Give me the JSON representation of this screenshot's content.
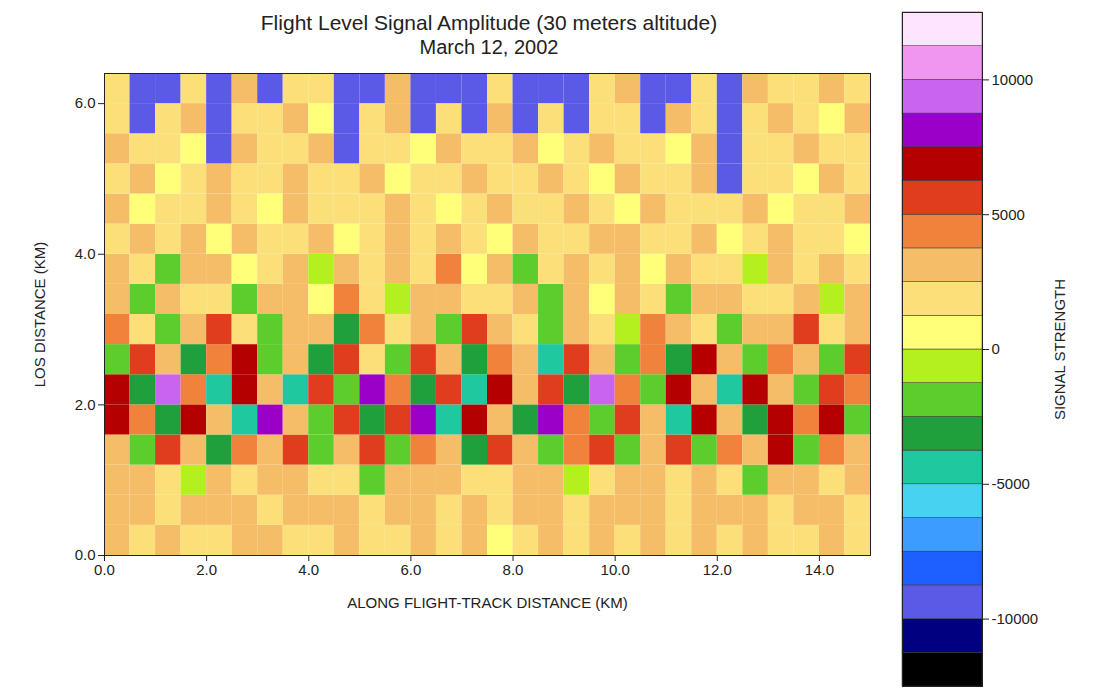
{
  "chart_data": {
    "type": "heatmap",
    "title": "Flight Level Signal Amplitude (30 meters altitude)",
    "subtitle": "March 12, 2002",
    "x_label": "ALONG FLIGHT-TRACK DISTANCE (KM)",
    "y_label": "LOS DISTANCE (KM)",
    "xlim": [
      0,
      15
    ],
    "xticks": [
      {
        "value": 0,
        "label": "0.0"
      },
      {
        "value": 2,
        "label": "2.0"
      },
      {
        "value": 4,
        "label": "4.0"
      },
      {
        "value": 6,
        "label": "6.0"
      },
      {
        "value": 8,
        "label": "8.0"
      },
      {
        "value": 10,
        "label": "10.0"
      },
      {
        "value": 12,
        "label": "12.0"
      },
      {
        "value": 14,
        "label": "14.0"
      }
    ],
    "ylim": [
      0,
      6.4
    ],
    "yticks": [
      {
        "value": 0,
        "label": "0.0"
      },
      {
        "value": 2,
        "label": "2.0"
      },
      {
        "value": 4,
        "label": "4.0"
      },
      {
        "value": 6,
        "label": "6.0"
      }
    ],
    "x": [
      0.25,
      0.75,
      1.25,
      1.75,
      2.25,
      2.75,
      3.25,
      3.75,
      4.25,
      4.75,
      5.25,
      5.75,
      6.25,
      6.75,
      7.25,
      7.75,
      8.25,
      8.75,
      9.25,
      9.75,
      10.25,
      10.75,
      11.25,
      11.75,
      12.25,
      12.75,
      13.25,
      13.75,
      14.25,
      14.75
    ],
    "y": [
      0.2,
      0.6,
      1.0,
      1.4,
      1.8,
      2.2,
      2.6,
      3.0,
      3.4,
      3.8,
      4.2,
      4.6,
      5.0,
      5.4,
      5.8,
      6.2
    ],
    "values": [
      [
        2500,
        1500,
        3000,
        2000,
        1500,
        2500,
        3000,
        1500,
        2000,
        2500,
        1500,
        2000,
        3000,
        1500,
        2500,
        1000,
        2000,
        2500,
        1500,
        3000,
        2000,
        2500,
        1500,
        3500,
        2000,
        2500,
        1500,
        2000,
        2500,
        1500
      ],
      [
        3000,
        2500,
        2000,
        3000,
        2500,
        3000,
        2000,
        2500,
        3000,
        2500,
        2000,
        3000,
        2500,
        2000,
        3000,
        1500,
        2500,
        3000,
        2000,
        2500,
        3000,
        2500,
        2000,
        3000,
        2500,
        3000,
        2000,
        2500,
        3000,
        2000
      ],
      [
        2500,
        3000,
        1500,
        -1000,
        3500,
        2000,
        2500,
        3000,
        1500,
        2000,
        -1500,
        3000,
        2500,
        3500,
        2000,
        1500,
        2500,
        3000,
        -1000,
        2000,
        3500,
        2500,
        1500,
        3000,
        2000,
        -1500,
        2500,
        3000,
        2000,
        2500
      ],
      [
        3500,
        -2000,
        5500,
        3000,
        -3000,
        4500,
        2500,
        6000,
        -2500,
        3500,
        5000,
        -2000,
        4000,
        2500,
        -3500,
        5500,
        3000,
        -2000,
        4500,
        6000,
        -1500,
        3500,
        5000,
        -2500,
        4000,
        3000,
        6500,
        -2000,
        4500,
        3500
      ],
      [
        7000,
        4500,
        -3000,
        6500,
        2500,
        -4500,
        8500,
        3500,
        -2000,
        6000,
        -3500,
        5000,
        7500,
        -4000,
        6500,
        3000,
        -3000,
        8000,
        4500,
        -2500,
        6000,
        3500,
        -4500,
        7000,
        2500,
        -3000,
        6500,
        4000,
        7000,
        -2000
      ],
      [
        6500,
        -3500,
        9000,
        4500,
        -4000,
        7000,
        3000,
        -5000,
        6000,
        -2500,
        8000,
        4000,
        -3500,
        5500,
        -4500,
        7000,
        2500,
        6000,
        -3000,
        9500,
        4500,
        -2500,
        6500,
        3500,
        -4000,
        7000,
        3000,
        -2000,
        5500,
        4000
      ],
      [
        -2500,
        5500,
        2500,
        -3000,
        4000,
        6500,
        -2000,
        3000,
        -3500,
        5000,
        2000,
        -2500,
        6000,
        3500,
        -3000,
        4500,
        2500,
        -4000,
        5500,
        3000,
        -2000,
        4500,
        -3000,
        6500,
        2500,
        -1500,
        4000,
        3000,
        -2500,
        5000
      ],
      [
        4000,
        2000,
        -2500,
        3000,
        5500,
        1500,
        -2000,
        3500,
        2500,
        -3000,
        4500,
        2000,
        3000,
        -1500,
        5000,
        2500,
        1500,
        -2500,
        3500,
        2000,
        -1000,
        4000,
        2500,
        1500,
        -2000,
        3000,
        2500,
        5500,
        2000,
        3500
      ],
      [
        2500,
        -2000,
        3500,
        1500,
        2000,
        -1500,
        3000,
        2500,
        1000,
        4500,
        2000,
        -1000,
        2500,
        3000,
        1500,
        2000,
        3500,
        -2000,
        2500,
        1000,
        3000,
        2000,
        -1500,
        2500,
        3500,
        1500,
        2000,
        2500,
        -1000,
        3000
      ],
      [
        3000,
        1500,
        -1500,
        2500,
        3500,
        1000,
        2000,
        2500,
        -1000,
        3000,
        1500,
        2500,
        2000,
        4000,
        1000,
        2500,
        -1500,
        2000,
        3000,
        1500,
        2500,
        1000,
        3500,
        2000,
        1500,
        -1000,
        2500,
        2000,
        3000,
        1500
      ],
      [
        2000,
        2500,
        1500,
        3000,
        1000,
        2500,
        2000,
        1500,
        2500,
        1000,
        2000,
        3000,
        1500,
        2500,
        2000,
        1000,
        2500,
        2000,
        1500,
        2500,
        3000,
        1500,
        2000,
        2500,
        1000,
        2000,
        2500,
        1500,
        2000,
        1000
      ],
      [
        2500,
        1000,
        2000,
        1500,
        2500,
        2000,
        1000,
        2500,
        1500,
        2000,
        1500,
        2500,
        2000,
        1000,
        1500,
        2500,
        2000,
        1500,
        2500,
        2000,
        1000,
        2500,
        1500,
        2000,
        1500,
        2500,
        1000,
        2000,
        1500,
        2500
      ],
      [
        1500,
        2500,
        1000,
        2000,
        2500,
        1500,
        2000,
        2500,
        1500,
        2000,
        2500,
        1000,
        2000,
        1500,
        2500,
        2000,
        1500,
        2500,
        2000,
        1000,
        2500,
        1500,
        2000,
        2500,
        -9000,
        1500,
        2000,
        1000,
        2500,
        2000
      ],
      [
        2500,
        1500,
        2000,
        1000,
        -9000,
        2500,
        1500,
        2000,
        2500,
        -9000,
        1500,
        2000,
        1000,
        2500,
        1500,
        2000,
        2500,
        1000,
        2000,
        2500,
        1500,
        2000,
        1000,
        2500,
        -9000,
        2000,
        1500,
        2500,
        2000,
        1500
      ],
      [
        1500,
        -9000,
        2000,
        2500,
        -9000,
        1500,
        2000,
        2500,
        1000,
        -9000,
        2000,
        2500,
        -9000,
        1500,
        -9000,
        2500,
        -9000,
        1500,
        -9000,
        2000,
        1500,
        -9000,
        2500,
        2000,
        -9000,
        1500,
        2500,
        2000,
        1000,
        2500
      ],
      [
        2000,
        -9000,
        -9000,
        1500,
        -9000,
        2500,
        -9000,
        1500,
        2000,
        -9000,
        -9000,
        2500,
        -9000,
        -9000,
        -9000,
        1500,
        -9000,
        -9000,
        -9000,
        2000,
        2500,
        -9000,
        -9000,
        1500,
        -9000,
        2500,
        2000,
        1500,
        2500,
        2000
      ]
    ],
    "colorbar": {
      "label": "SIGNAL STRENGTH",
      "range": [
        -12500,
        12500
      ],
      "ticks": [
        -10000,
        -5000,
        0,
        5000,
        10000
      ],
      "colors": [
        "#000000",
        "#000080",
        "#5a5ae6",
        "#1e5fff",
        "#3c9cff",
        "#46d2f0",
        "#20c8a0",
        "#1fa03c",
        "#5ccd2d",
        "#b4f01e",
        "#ffff7a",
        "#fbe07a",
        "#f6bd68",
        "#f0823c",
        "#e03c1e",
        "#b40000",
        "#9b00c8",
        "#c864f0",
        "#f096f0",
        "#ffe4ff"
      ]
    }
  }
}
